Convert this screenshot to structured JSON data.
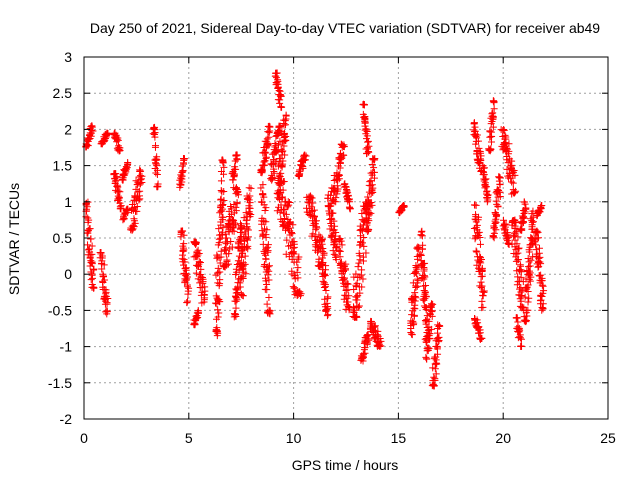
{
  "chart_data": {
    "type": "scatter",
    "title": "Day 250 of 2021, Sidereal Day-to-day VTEC variation (SDTVAR) for receiver ab49",
    "xlabel": "GPS time / hours",
    "ylabel": "SDTVAR / TECUs",
    "xlim": [
      0,
      25
    ],
    "ylim": [
      -2,
      3
    ],
    "x_ticks": [
      0,
      5,
      10,
      15,
      20,
      25
    ],
    "x_tick_labels": [
      "0",
      "5",
      "10",
      "15",
      "20",
      "25"
    ],
    "y_ticks": [
      -2,
      -1.5,
      -1,
      -0.5,
      0,
      0.5,
      1,
      1.5,
      2,
      2.5,
      3
    ],
    "y_tick_labels": [
      "-2",
      "-1.5",
      "-1",
      "-0.5",
      "0",
      "0.5",
      "1",
      "1.5",
      "2",
      "2.5",
      "3"
    ],
    "grid": true,
    "marker": "+",
    "color": "#ff0000",
    "series": [
      {
        "name": "SDTVAR",
        "segments": [
          {
            "x": [
              0.05,
              0.45
            ],
            "y": [
              1.75,
              2.05
            ]
          },
          {
            "x": [
              0.05,
              0.5
            ],
            "y": [
              -0.2,
              1.0
            ]
          },
          {
            "x": [
              0.8,
              1.15
            ],
            "y": [
              1.8,
              1.95
            ]
          },
          {
            "x": [
              0.75,
              1.15
            ],
            "y": [
              -0.55,
              0.3
            ]
          },
          {
            "x": [
              1.4,
              1.75
            ],
            "y": [
              1.7,
              1.95
            ]
          },
          {
            "x": [
              1.4,
              1.8
            ],
            "y": [
              0.9,
              1.4
            ]
          },
          {
            "x": [
              1.8,
              2.1
            ],
            "y": [
              1.3,
              1.55
            ]
          },
          {
            "x": [
              1.85,
              2.1
            ],
            "y": [
              0.75,
              0.9
            ]
          },
          {
            "x": [
              2.2,
              2.8
            ],
            "y": [
              0.6,
              1.45
            ]
          },
          {
            "x": [
              3.3,
              3.55
            ],
            "y": [
              1.2,
              2.05
            ]
          },
          {
            "x": [
              4.55,
              4.8
            ],
            "y": [
              1.2,
              1.6
            ]
          },
          {
            "x": [
              4.6,
              5.0
            ],
            "y": [
              -0.4,
              0.6
            ]
          },
          {
            "x": [
              5.2,
              5.5
            ],
            "y": [
              -0.7,
              -0.5
            ]
          },
          {
            "x": [
              5.2,
              5.8
            ],
            "y": [
              -0.4,
              0.45
            ]
          },
          {
            "x": [
              6.25,
              6.7
            ],
            "y": [
              -0.85,
              1.6
            ]
          },
          {
            "x": [
              6.6,
              7.4
            ],
            "y": [
              0.1,
              1.2
            ]
          },
          {
            "x": [
              7.05,
              7.35
            ],
            "y": [
              1.3,
              1.65
            ]
          },
          {
            "x": [
              7.15,
              7.55
            ],
            "y": [
              -0.6,
              0.7
            ]
          },
          {
            "x": [
              7.4,
              8.0
            ],
            "y": [
              -0.3,
              1.2
            ]
          },
          {
            "x": [
              8.5,
              8.9
            ],
            "y": [
              1.5,
              2.05
            ]
          },
          {
            "x": [
              8.4,
              8.9
            ],
            "y": [
              -0.55,
              1.45
            ]
          },
          {
            "x": [
              8.9,
              9.4
            ],
            "y": [
              1.3,
              2.05
            ]
          },
          {
            "x": [
              9.1,
              9.45
            ],
            "y": [
              2.3,
              2.78
            ]
          },
          {
            "x": [
              9.2,
              9.7
            ],
            "y": [
              1.1,
              2.2
            ]
          },
          {
            "x": [
              9.2,
              10.4
            ],
            "y": [
              -0.3,
              1.3
            ]
          },
          {
            "x": [
              10.2,
              10.6
            ],
            "y": [
              1.35,
              1.65
            ]
          },
          {
            "x": [
              10.6,
              11.4
            ],
            "y": [
              0.1,
              1.1
            ]
          },
          {
            "x": [
              11.3,
              11.65
            ],
            "y": [
              -0.6,
              0.5
            ]
          },
          {
            "x": [
              11.6,
              12.1
            ],
            "y": [
              0.2,
              1.1
            ]
          },
          {
            "x": [
              11.8,
              12.45
            ],
            "y": [
              1.0,
              1.8
            ]
          },
          {
            "x": [
              12.1,
              12.7
            ],
            "y": [
              -0.5,
              0.5
            ]
          },
          {
            "x": [
              12.4,
              12.75
            ],
            "y": [
              0.9,
              1.25
            ]
          },
          {
            "x": [
              12.8,
              13.6
            ],
            "y": [
              -0.6,
              1.0
            ]
          },
          {
            "x": [
              13.3,
              13.6
            ],
            "y": [
              1.6,
              2.35
            ]
          },
          {
            "x": [
              13.45,
              13.9
            ],
            "y": [
              0.6,
              1.6
            ]
          },
          {
            "x": [
              13.2,
              13.6
            ],
            "y": [
              -1.2,
              -0.8
            ]
          },
          {
            "x": [
              13.6,
              14.2
            ],
            "y": [
              -1.0,
              -0.65
            ]
          },
          {
            "x": [
              15.0,
              15.3
            ],
            "y": [
              0.85,
              0.95
            ]
          },
          {
            "x": [
              15.55,
              16.0
            ],
            "y": [
              -0.85,
              0.4
            ]
          },
          {
            "x": [
              16.05,
              16.4
            ],
            "y": [
              -0.9,
              0.6
            ]
          },
          {
            "x": [
              16.3,
              16.65
            ],
            "y": [
              -1.2,
              -0.4
            ]
          },
          {
            "x": [
              16.6,
              17.0
            ],
            "y": [
              -1.55,
              -0.7
            ]
          },
          {
            "x": [
              18.55,
              19.0
            ],
            "y": [
              1.4,
              2.1
            ]
          },
          {
            "x": [
              18.6,
              19.1
            ],
            "y": [
              -0.5,
              1.0
            ]
          },
          {
            "x": [
              18.6,
              19.0
            ],
            "y": [
              -0.9,
              -0.6
            ]
          },
          {
            "x": [
              19.0,
              19.3
            ],
            "y": [
              1.0,
              1.5
            ]
          },
          {
            "x": [
              19.3,
              19.6
            ],
            "y": [
              1.7,
              2.4
            ]
          },
          {
            "x": [
              19.5,
              19.9
            ],
            "y": [
              0.5,
              1.35
            ]
          },
          {
            "x": [
              19.9,
              20.6
            ],
            "y": [
              1.1,
              2.0
            ]
          },
          {
            "x": [
              20.0,
              20.3
            ],
            "y": [
              0.4,
              0.75
            ]
          },
          {
            "x": [
              20.4,
              21.0
            ],
            "y": [
              -0.5,
              0.75
            ]
          },
          {
            "x": [
              20.6,
              20.9
            ],
            "y": [
              -1.0,
              -0.6
            ]
          },
          {
            "x": [
              20.8,
              21.1
            ],
            "y": [
              0.6,
              1.0
            ]
          },
          {
            "x": [
              21.0,
              21.5
            ],
            "y": [
              -0.7,
              0.9
            ]
          },
          {
            "x": [
              21.5,
              21.95
            ],
            "y": [
              -0.5,
              0.6
            ]
          },
          {
            "x": [
              21.6,
              21.85
            ],
            "y": [
              0.8,
              0.95
            ]
          }
        ]
      }
    ]
  }
}
